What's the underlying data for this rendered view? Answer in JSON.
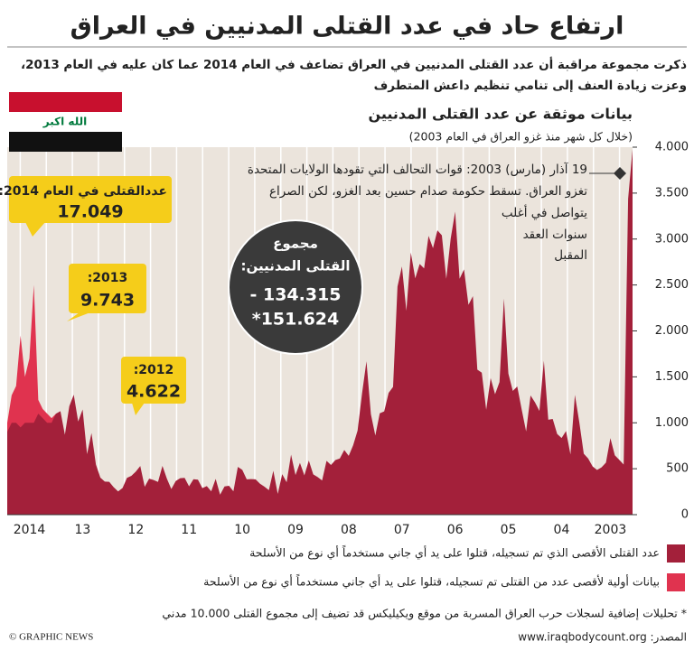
{
  "chart_data": {
    "type": "area",
    "title": "ارتفاع حاد في عدد القتلى المدنيين في العراق",
    "subtitle": [
      "ذكرت مجموعة مراقبة أن عدد القتلى المدنيين في العراق تضاعف في العام 2014 عما كان عليه في العام 2013،",
      "وعزت زيادة العنف إلى تنامي تنظيم داعش المتطرف"
    ],
    "flag_text": "الله اكبر",
    "chart_title": "بيانات موثقة عن عدد القتلى المدنيين",
    "chart_subtitle": "(خلال كل شهر منذ غزو العراق في العام 2003)",
    "annotations": {
      "invasion": [
        "19 آذار (مارس) 2003: قوات التحالف التي تقودها الولايات المتحدة",
        "تغزو العراق. تسقط حكومة صدام حسين بعد الغزو، لكن الصراع",
        "يتواصل في أغلب",
        "سنوات العقد",
        "المقبل"
      ],
      "y2014": [
        "عددالقتلى  في العام 2014:",
        "17.049"
      ],
      "y2013": [
        ":2013",
        "9.743"
      ],
      "y2012": [
        ":2012",
        "4.622"
      ],
      "total": [
        "مجموع",
        "القتلى المدنيين:",
        "134.315 -",
        "151.624*"
      ]
    },
    "categories": [
      null,
      null,
      null,
      null,
      null,
      "2003",
      null,
      null,
      null,
      null,
      null,
      null,
      null,
      null,
      null,
      null,
      "04",
      null,
      null,
      null,
      null,
      null,
      null,
      null,
      null,
      null,
      null,
      null,
      "05",
      null,
      null,
      null,
      null,
      null,
      null,
      null,
      null,
      null,
      null,
      null,
      "06",
      null,
      null,
      null,
      null,
      null,
      null,
      null,
      null,
      null,
      null,
      null,
      "07",
      null,
      null,
      null,
      null,
      null,
      null,
      null,
      null,
      null,
      null,
      null,
      "08",
      null,
      null,
      null,
      null,
      null,
      null,
      null,
      null,
      null,
      null,
      null,
      "09",
      null,
      null,
      null,
      null,
      null,
      null,
      null,
      null,
      null,
      null,
      null,
      "10",
      null,
      null,
      null,
      null,
      null,
      null,
      null,
      null,
      null,
      null,
      null,
      "11",
      null,
      null,
      null,
      null,
      null,
      null,
      null,
      null,
      null,
      null,
      null,
      "12",
      null,
      null,
      null,
      null,
      null,
      null,
      null,
      null,
      null,
      null,
      null,
      "13",
      null,
      null,
      null,
      null,
      null,
      null,
      null,
      null,
      null,
      null,
      null,
      "2014",
      null,
      null,
      null,
      null,
      null
    ],
    "series": [
      {
        "name": "عدد القتلى الأقصى الذي تم تسجيله، قتلوا على يد أي جاني مستخدماً أي نوع من الأسلحة",
        "color": "#a3203a",
        "values": [
          3977,
          3437,
          545,
          597,
          646,
          833,
          566,
          515,
          487,
          524,
          610,
          663,
          1004,
          1303,
          655,
          910,
          834,
          878,
          1042,
          1033,
          1676,
          1129,
          1222,
          1297,
          905,
          1145,
          1396,
          1347,
          1536,
          2352,
          1444,
          1311,
          1487,
          1141,
          1546,
          1579,
          2378,
          2284,
          2669,
          2567,
          3298,
          3007,
          2567,
          3041,
          3095,
          2900,
          3035,
          2680,
          2728,
          2573,
          2854,
          2219,
          2702,
          2483,
          1391,
          1326,
          1124,
          1103,
          861,
          1093,
          1669,
          1317,
          915,
          755,
          640,
          704,
          612,
          594,
          540,
          586,
          372,
          409,
          438,
          590,
          428,
          564,
          431,
          653,
          352,
          441,
          226,
          478,
          267,
          305,
          336,
          385,
          387,
          385,
          488,
          520,
          254,
          315,
          307,
          218,
          389,
          254,
          311,
          289,
          381,
          386,
          308,
          401,
          397,
          366,
          279,
          392,
          531,
          356,
          377,
          392,
          304,
          529,
          469,
          422,
          400,
          290,
          253,
          299,
          357,
          360,
          403,
          545,
          888,
          659,
          1145,
          1013,
          1306,
          1180,
          870,
          1126,
          1100,
          1000,
          1000,
          1050,
          1100,
          1000,
          1000,
          1000,
          950,
          1000,
          1000,
          900
        ]
      },
      {
        "name": "بيانات أولية لأقصى عدد من القتلى تم تسجيله، قتلوا على يد أي جاني مستخدماً أي نوع من الأسلحة",
        "color": "#e0334f",
        "values": [
          null,
          null,
          null,
          null,
          null,
          null,
          null,
          null,
          null,
          null,
          null,
          null,
          null,
          null,
          null,
          null,
          null,
          null,
          null,
          null,
          null,
          null,
          null,
          null,
          null,
          null,
          null,
          null,
          null,
          null,
          null,
          null,
          null,
          null,
          null,
          null,
          null,
          null,
          null,
          null,
          null,
          null,
          null,
          null,
          null,
          null,
          null,
          null,
          null,
          null,
          null,
          null,
          null,
          null,
          null,
          null,
          null,
          null,
          null,
          null,
          null,
          null,
          null,
          null,
          null,
          null,
          null,
          null,
          null,
          null,
          null,
          null,
          null,
          null,
          null,
          null,
          null,
          null,
          null,
          null,
          null,
          null,
          null,
          null,
          null,
          null,
          null,
          null,
          null,
          null,
          null,
          null,
          null,
          null,
          null,
          null,
          null,
          null,
          null,
          null,
          null,
          null,
          null,
          null,
          null,
          null,
          null,
          null,
          null,
          null,
          null,
          null,
          null,
          null,
          null,
          null,
          null,
          null,
          null,
          null,
          null,
          null,
          null,
          null,
          null,
          null,
          null,
          null,
          null,
          null,
          1100,
          1050,
          1100,
          1150,
          1250,
          2500,
          1700,
          1500,
          1950,
          1400,
          1300,
          1000
        ]
      }
    ],
    "ylim": [
      0,
      4000
    ],
    "yticks": [
      0,
      500,
      {
        "value": 1000,
        "label": "1.000"
      },
      {
        "value": 1500,
        "label": "1.500"
      },
      {
        "value": 2000,
        "label": "2.000"
      },
      {
        "value": 2500,
        "label": "2.500"
      },
      {
        "value": 3000,
        "label": "3.000"
      },
      {
        "value": 3500,
        "label": "3.500"
      },
      {
        "value": 4000,
        "label": "4.000"
      }
    ],
    "footnote": "* تحليلات إضافية لسجلات حرب العراق المسربة من موقع ويكيليكس قد تضيف إلى مجموع القتلى 10.000 مدني",
    "source": "المصدر: www.iraqbodycount.org",
    "credit": "© GRAPHIC NEWS"
  }
}
